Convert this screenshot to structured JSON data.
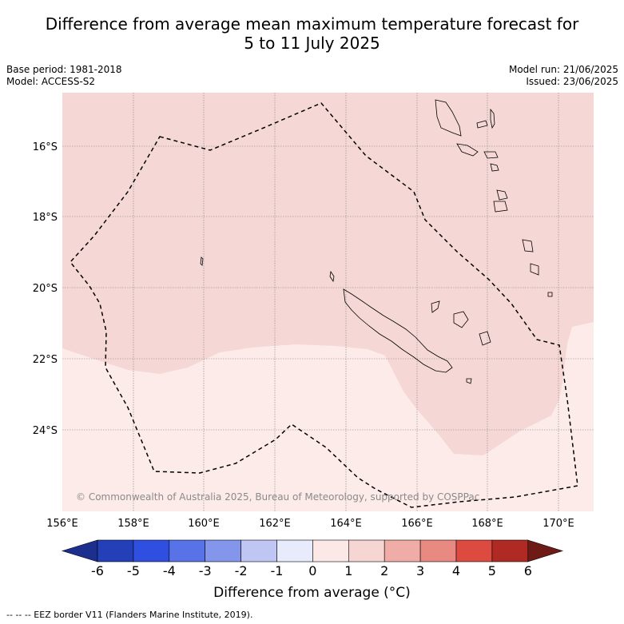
{
  "title_line1": "Difference from average mean maximum temperature forecast for",
  "title_line2": "5 to 11 July 2025",
  "base_period": "Base period: 1981-2018",
  "model": "Model: ACCESS-S2",
  "model_run": "Model run: 21/06/2025",
  "issued": "Issued: 23/06/2025",
  "copyright": "© Commonwealth of Australia 2025, Bureau of Meteorology, supported by COSPPac",
  "lon_labels": [
    "156°E",
    "158°E",
    "160°E",
    "162°E",
    "164°E",
    "166°E",
    "168°E",
    "170°E"
  ],
  "lat_labels": [
    "16°S",
    "18°S",
    "20°S",
    "22°S",
    "24°S"
  ],
  "colorbar": {
    "title": "Difference from average (°C)",
    "ticks": [
      "-6",
      "-5",
      "-4",
      "-3",
      "-2",
      "-1",
      "0",
      "1",
      "2",
      "3",
      "4",
      "5",
      "6"
    ],
    "colors": [
      "#1c2f8e",
      "#2440b8",
      "#2f4fe0",
      "#5872e8",
      "#8496ec",
      "#bfc6f4",
      "#e7ebfb",
      "#fce9e7",
      "#f5d6d3",
      "#f0aca7",
      "#e88a82",
      "#dd4a3f",
      "#ae2a22",
      "#6e1a16"
    ]
  },
  "legend_note": "--  --  -- EEZ border V11 (Flanders Marine Institute, 2019).",
  "regions": {
    "anomaly_0_to_1_color": "#fcebe9",
    "anomaly_1_to_2_color": "#f5d8d5"
  }
}
